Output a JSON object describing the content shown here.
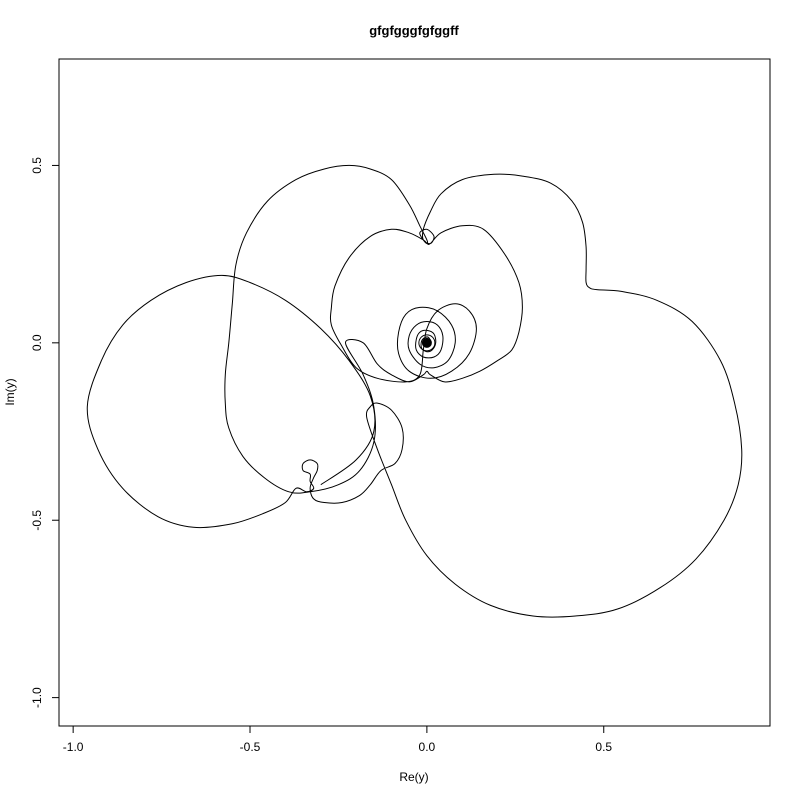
{
  "chart_data": {
    "type": "line",
    "title": "gfgfgggfgfggff",
    "xlabel": "Re(y)",
    "ylabel": "Im(y)",
    "xlim": [
      -1.04,
      0.97
    ],
    "ylim": [
      -1.08,
      0.8
    ],
    "xticks": [
      -1.0,
      -0.5,
      0.0,
      0.5
    ],
    "yticks": [
      -1.0,
      -0.5,
      0.0,
      0.5
    ],
    "xtick_labels": [
      "-1.0",
      "-0.5",
      "0.0",
      "0.5"
    ],
    "ytick_labels": [
      "-1.0",
      "-0.5",
      "0.0",
      "0.5"
    ],
    "grid": false,
    "line_color": "#000000",
    "series": [
      {
        "points": [
          [
            -0.3,
            -0.4
          ],
          [
            -0.2,
            -0.33
          ],
          [
            -0.15,
            -0.25
          ],
          [
            -0.16,
            -0.15
          ],
          [
            -0.22,
            -0.05
          ],
          [
            -0.3,
            0.04
          ],
          [
            -0.4,
            0.12
          ],
          [
            -0.5,
            0.17
          ],
          [
            -0.58,
            0.19
          ],
          [
            -0.68,
            0.17
          ],
          [
            -0.78,
            0.12
          ],
          [
            -0.86,
            0.05
          ],
          [
            -0.92,
            -0.05
          ],
          [
            -0.96,
            -0.18
          ],
          [
            -0.93,
            -0.3
          ],
          [
            -0.86,
            -0.41
          ],
          [
            -0.76,
            -0.49
          ],
          [
            -0.66,
            -0.52
          ],
          [
            -0.55,
            -0.51
          ],
          [
            -0.46,
            -0.48
          ],
          [
            -0.4,
            -0.45
          ],
          [
            -0.37,
            -0.41
          ],
          [
            -0.34,
            -0.42
          ],
          [
            -0.32,
            -0.41
          ],
          [
            -0.33,
            -0.39
          ],
          [
            -0.33,
            -0.37
          ],
          [
            -0.35,
            -0.36
          ],
          [
            -0.35,
            -0.34
          ],
          [
            -0.33,
            -0.33
          ],
          [
            -0.31,
            -0.34
          ],
          [
            -0.31,
            -0.36
          ],
          [
            -0.32,
            -0.38
          ],
          [
            -0.33,
            -0.41
          ],
          [
            -0.32,
            -0.44
          ],
          [
            -0.29,
            -0.45
          ],
          [
            -0.24,
            -0.45
          ],
          [
            -0.19,
            -0.43
          ],
          [
            -0.16,
            -0.4
          ],
          [
            -0.13,
            -0.36
          ],
          [
            -0.09,
            -0.34
          ],
          [
            -0.07,
            -0.3
          ],
          [
            -0.07,
            -0.24
          ],
          [
            -0.1,
            -0.19
          ],
          [
            -0.14,
            -0.17
          ],
          [
            -0.16,
            -0.18
          ],
          [
            -0.17,
            -0.21
          ],
          [
            -0.14,
            -0.3
          ],
          [
            -0.1,
            -0.4
          ],
          [
            -0.06,
            -0.5
          ],
          [
            0.0,
            -0.6
          ],
          [
            0.08,
            -0.68
          ],
          [
            0.18,
            -0.74
          ],
          [
            0.3,
            -0.77
          ],
          [
            0.42,
            -0.77
          ],
          [
            0.54,
            -0.75
          ],
          [
            0.66,
            -0.69
          ],
          [
            0.76,
            -0.61
          ],
          [
            0.84,
            -0.5
          ],
          [
            0.88,
            -0.4
          ],
          [
            0.89,
            -0.3
          ],
          [
            0.87,
            -0.17
          ],
          [
            0.83,
            -0.05
          ],
          [
            0.75,
            0.06
          ],
          [
            0.65,
            0.12
          ],
          [
            0.55,
            0.145
          ],
          [
            0.48,
            0.15
          ],
          [
            0.46,
            0.155
          ],
          [
            0.45,
            0.17
          ],
          [
            0.45,
            0.21
          ],
          [
            0.45,
            0.27
          ],
          [
            0.44,
            0.34
          ],
          [
            0.41,
            0.4
          ],
          [
            0.35,
            0.45
          ],
          [
            0.27,
            0.47
          ],
          [
            0.19,
            0.475
          ],
          [
            0.1,
            0.46
          ],
          [
            0.04,
            0.42
          ],
          [
            0.01,
            0.37
          ],
          [
            -0.01,
            0.32
          ],
          [
            -0.01,
            0.29
          ],
          [
            0.01,
            0.28
          ],
          [
            0.02,
            0.3
          ],
          [
            0.0,
            0.32
          ],
          [
            -0.02,
            0.31
          ],
          [
            -0.01,
            0.29
          ],
          [
            0.0,
            0.28
          ],
          [
            0.0,
            0.29
          ],
          [
            -0.02,
            0.33
          ],
          [
            -0.05,
            0.39
          ],
          [
            -0.1,
            0.46
          ],
          [
            -0.16,
            0.49
          ],
          [
            -0.22,
            0.5
          ],
          [
            -0.29,
            0.49
          ],
          [
            -0.37,
            0.46
          ],
          [
            -0.45,
            0.4
          ],
          [
            -0.51,
            0.31
          ],
          [
            -0.54,
            0.22
          ],
          [
            -0.55,
            0.11
          ],
          [
            -0.56,
            0.0
          ],
          [
            -0.57,
            -0.09
          ],
          [
            -0.57,
            -0.17
          ],
          [
            -0.56,
            -0.24
          ],
          [
            -0.52,
            -0.32
          ],
          [
            -0.46,
            -0.38
          ],
          [
            -0.39,
            -0.42
          ],
          [
            -0.33,
            -0.42
          ],
          [
            -0.25,
            -0.4
          ],
          [
            -0.19,
            -0.36
          ],
          [
            -0.15,
            -0.28
          ],
          [
            -0.15,
            -0.18
          ],
          [
            -0.18,
            -0.09
          ],
          [
            -0.23,
            0.0
          ],
          [
            -0.18,
            0.0
          ],
          [
            -0.14,
            -0.06
          ],
          [
            -0.1,
            -0.09
          ],
          [
            -0.05,
            -0.11
          ],
          [
            -0.01,
            -0.09
          ],
          [
            0.0,
            -0.08
          ],
          [
            0.01,
            -0.09
          ],
          [
            0.05,
            -0.11
          ],
          [
            0.1,
            -0.1
          ],
          [
            0.15,
            -0.08
          ],
          [
            0.2,
            -0.05
          ],
          [
            0.24,
            -0.02
          ],
          [
            0.26,
            0.03
          ],
          [
            0.27,
            0.1
          ],
          [
            0.26,
            0.17
          ],
          [
            0.22,
            0.25
          ],
          [
            0.16,
            0.32
          ],
          [
            0.1,
            0.33
          ],
          [
            0.04,
            0.31
          ],
          [
            0.01,
            0.28
          ],
          [
            0.0,
            0.28
          ],
          [
            -0.01,
            0.29
          ],
          [
            -0.05,
            0.31
          ],
          [
            -0.1,
            0.32
          ],
          [
            -0.16,
            0.3
          ],
          [
            -0.22,
            0.24
          ],
          [
            -0.26,
            0.16
          ],
          [
            -0.27,
            0.1
          ],
          [
            -0.27,
            0.05
          ],
          [
            -0.24,
            -0.01
          ],
          [
            -0.2,
            -0.07
          ],
          [
            -0.14,
            -0.1
          ],
          [
            -0.06,
            -0.11
          ],
          [
            -0.02,
            -0.09
          ],
          [
            -0.01,
            -0.02
          ],
          [
            0.0,
            0.04
          ],
          [
            0.03,
            0.09
          ],
          [
            0.08,
            0.11
          ],
          [
            0.12,
            0.09
          ],
          [
            0.14,
            0.04
          ],
          [
            0.12,
            -0.03
          ],
          [
            0.07,
            -0.08
          ],
          [
            0.01,
            -0.1
          ],
          [
            -0.05,
            -0.08
          ],
          [
            -0.08,
            -0.03
          ],
          [
            -0.08,
            0.03
          ],
          [
            -0.06,
            0.08
          ],
          [
            -0.02,
            0.1
          ],
          [
            0.03,
            0.09
          ],
          [
            0.07,
            0.05
          ],
          [
            0.08,
            0.0
          ],
          [
            0.06,
            -0.05
          ],
          [
            0.02,
            -0.07
          ],
          [
            -0.02,
            -0.06
          ],
          [
            -0.05,
            -0.02
          ],
          [
            -0.05,
            0.02
          ],
          [
            -0.03,
            0.05
          ],
          [
            0.0,
            0.06
          ],
          [
            0.03,
            0.05
          ],
          [
            0.045,
            0.02
          ],
          [
            0.04,
            -0.02
          ],
          [
            0.02,
            -0.04
          ],
          [
            -0.01,
            -0.04
          ],
          [
            -0.03,
            -0.02
          ],
          [
            -0.03,
            0.01
          ],
          [
            -0.02,
            0.03
          ],
          [
            0.0,
            0.035
          ],
          [
            0.02,
            0.025
          ],
          [
            0.025,
            0.0
          ],
          [
            0.015,
            -0.02
          ],
          [
            0.0,
            -0.025
          ],
          [
            -0.015,
            -0.015
          ],
          [
            -0.015,
            0.005
          ],
          [
            -0.005,
            0.015
          ],
          [
            0.005,
            0.015
          ],
          [
            0.012,
            0.0
          ],
          [
            0.005,
            -0.01
          ],
          [
            0.0,
            0.0
          ]
        ]
      }
    ],
    "endpoint": [
      0.0,
      0.0
    ]
  }
}
